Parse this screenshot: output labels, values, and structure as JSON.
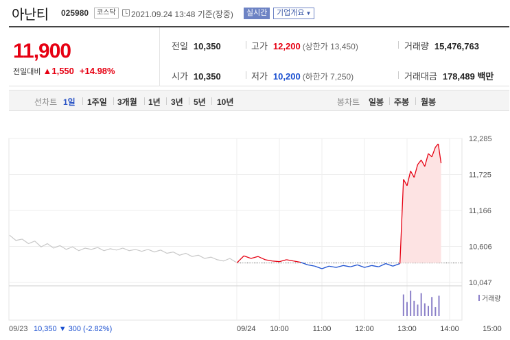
{
  "header": {
    "stock_name": "아난티",
    "stock_code": "025980",
    "market": "코스닥",
    "timestamp": "2021.09.24 13:48 기준(장중)",
    "realtime_label": "실시간",
    "overview_label": "기업개요"
  },
  "price": {
    "current": "11,900",
    "change_label": "전일대비",
    "change_arrow": "▲",
    "change_amount": "1,550",
    "change_pct": "+14.98%"
  },
  "stats": {
    "prev_close": {
      "label": "전일",
      "value": "10,350"
    },
    "high": {
      "label": "고가",
      "value": "12,200",
      "sub": "(상한가 13,450)"
    },
    "volume": {
      "label": "거래량",
      "value": "15,476,763"
    },
    "open": {
      "label": "시가",
      "value": "10,350"
    },
    "low": {
      "label": "저가",
      "value": "10,200",
      "sub": "(하한가 7,250)"
    },
    "trade_value": {
      "label": "거래대금",
      "value": "178,489",
      "unit": "백만"
    }
  },
  "period_bar": {
    "line_label": "선차트",
    "line_tabs": [
      "1일",
      "1주일",
      "3개월",
      "1년",
      "3년",
      "5년",
      "10년"
    ],
    "active_line_tab": "1일",
    "candle_label": "봉차트",
    "candle_tabs": [
      "일봉",
      "주봉",
      "월봉"
    ]
  },
  "colors": {
    "up": "#e60012",
    "down": "#1a4fd0",
    "prev_day_line": "#c8c8c8",
    "area_fill": "#fde3e3",
    "volume_bar": "#8a7fc8"
  },
  "chart_data": {
    "type": "line",
    "y_ticks": [
      "12,285",
      "11,725",
      "11,166",
      "10,606",
      "10,047"
    ],
    "ylim": [
      10047,
      12285
    ],
    "baseline": 10350,
    "x_ticks": [
      "09/24",
      "10:00",
      "11:00",
      "12:00",
      "13:00",
      "14:00",
      "15:00"
    ],
    "volume_label": "거래량",
    "prev_day": {
      "date_label": "09/23",
      "close": "10,350",
      "arrow": "▼",
      "change": "300",
      "pct": "(-2.82%)"
    },
    "prev_day_series": [
      10780,
      10700,
      10720,
      10650,
      10690,
      10600,
      10650,
      10580,
      10620,
      10560,
      10600,
      10540,
      10580,
      10560,
      10590,
      10540,
      10570,
      10550,
      10580,
      10540,
      10560,
      10530,
      10560,
      10520,
      10550,
      10500,
      10520,
      10470,
      10500,
      10450,
      10470,
      10420,
      10440,
      10400,
      10380,
      10420,
      10360
    ],
    "today_series": [
      {
        "t": "09:00",
        "v": 10350
      },
      {
        "t": "09:10",
        "v": 10460
      },
      {
        "t": "09:20",
        "v": 10420
      },
      {
        "t": "09:30",
        "v": 10450
      },
      {
        "t": "09:40",
        "v": 10400
      },
      {
        "t": "09:50",
        "v": 10380
      },
      {
        "t": "10:00",
        "v": 10370
      },
      {
        "t": "10:10",
        "v": 10400
      },
      {
        "t": "10:20",
        "v": 10380
      },
      {
        "t": "10:30",
        "v": 10360
      },
      {
        "t": "10:40",
        "v": 10320
      },
      {
        "t": "10:50",
        "v": 10300
      },
      {
        "t": "11:00",
        "v": 10260
      },
      {
        "t": "11:10",
        "v": 10300
      },
      {
        "t": "11:20",
        "v": 10280
      },
      {
        "t": "11:30",
        "v": 10310
      },
      {
        "t": "11:40",
        "v": 10290
      },
      {
        "t": "11:50",
        "v": 10320
      },
      {
        "t": "12:00",
        "v": 10280
      },
      {
        "t": "12:10",
        "v": 10310
      },
      {
        "t": "12:20",
        "v": 10290
      },
      {
        "t": "12:30",
        "v": 10340
      },
      {
        "t": "12:40",
        "v": 10300
      },
      {
        "t": "12:50",
        "v": 10340
      },
      {
        "t": "12:55",
        "v": 11650
      },
      {
        "t": "13:00",
        "v": 11550
      },
      {
        "t": "13:05",
        "v": 11780
      },
      {
        "t": "13:10",
        "v": 11680
      },
      {
        "t": "13:15",
        "v": 11880
      },
      {
        "t": "13:20",
        "v": 11950
      },
      {
        "t": "13:25",
        "v": 11850
      },
      {
        "t": "13:30",
        "v": 12050
      },
      {
        "t": "13:35",
        "v": 12000
      },
      {
        "t": "13:40",
        "v": 12150
      },
      {
        "t": "13:44",
        "v": 12200
      },
      {
        "t": "13:48",
        "v": 11900
      }
    ],
    "volume_series": [
      {
        "t": "12:55",
        "v": 0.85
      },
      {
        "t": "13:00",
        "v": 0.55
      },
      {
        "t": "13:05",
        "v": 1.0
      },
      {
        "t": "13:10",
        "v": 0.6
      },
      {
        "t": "13:15",
        "v": 0.45
      },
      {
        "t": "13:20",
        "v": 0.9
      },
      {
        "t": "13:25",
        "v": 0.5
      },
      {
        "t": "13:30",
        "v": 0.4
      },
      {
        "t": "13:35",
        "v": 0.75
      },
      {
        "t": "13:40",
        "v": 0.35
      },
      {
        "t": "13:45",
        "v": 0.8
      }
    ]
  }
}
